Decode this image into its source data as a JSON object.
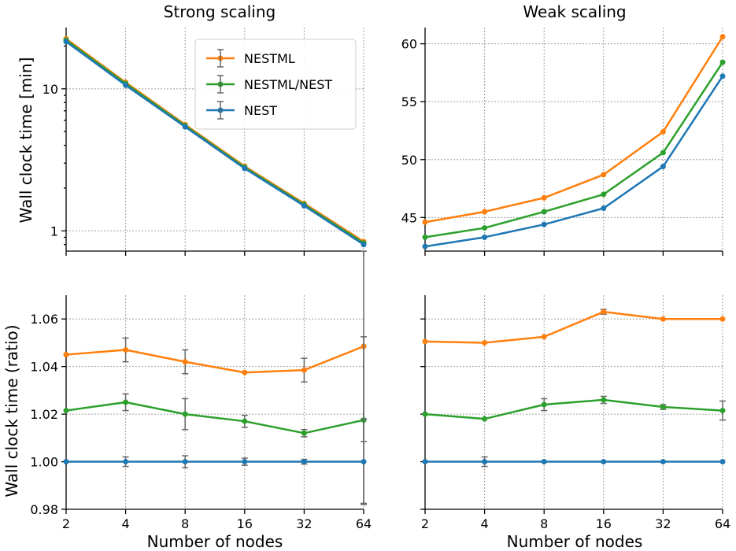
{
  "chart_data": [
    {
      "id": "p1",
      "type": "line",
      "title": "Strong scaling",
      "xlabel": "",
      "ylabel": "Wall clock time [min]",
      "yscale": "log",
      "ylim": [
        0.72,
        27
      ],
      "x": [
        2,
        4,
        8,
        16,
        32,
        64
      ],
      "xticks": [],
      "yticks": [
        {
          "value": 1,
          "label": "1"
        },
        {
          "value": 10,
          "label": "10"
        }
      ],
      "legend": true,
      "series": [
        {
          "name": "NESTML",
          "color": "#ff7f0e",
          "values": [
            22.5,
            11.1,
            5.6,
            2.85,
            1.56,
            0.84
          ],
          "errors": [
            0,
            0,
            0,
            0,
            0,
            0
          ]
        },
        {
          "name": "NESTML/NEST",
          "color": "#2ca02c",
          "values": [
            22.0,
            10.9,
            5.5,
            2.8,
            1.53,
            0.82
          ],
          "errors": [
            0,
            0,
            0,
            0,
            0,
            0
          ]
        },
        {
          "name": "NEST",
          "color": "#1f77b4",
          "values": [
            21.5,
            10.6,
            5.4,
            2.75,
            1.5,
            0.8
          ],
          "errors": [
            0,
            0,
            0,
            0,
            0,
            0
          ]
        }
      ]
    },
    {
      "id": "p2",
      "type": "line",
      "title": "Weak scaling",
      "xlabel": "",
      "ylabel": "",
      "yscale": "linear",
      "ylim": [
        42.1,
        61.4
      ],
      "x": [
        2,
        4,
        8,
        16,
        32,
        64
      ],
      "xticks": [],
      "yticks": [
        {
          "value": 45,
          "label": "45"
        },
        {
          "value": 50,
          "label": "50"
        },
        {
          "value": 55,
          "label": "55"
        },
        {
          "value": 60,
          "label": "60"
        }
      ],
      "legend": false,
      "series": [
        {
          "name": "NESTML",
          "color": "#ff7f0e",
          "values": [
            44.6,
            45.5,
            46.7,
            48.7,
            52.4,
            60.6
          ],
          "errors": [
            0,
            0,
            0,
            0,
            0,
            0
          ]
        },
        {
          "name": "NESTML/NEST",
          "color": "#2ca02c",
          "values": [
            43.3,
            44.1,
            45.5,
            47.0,
            50.6,
            58.4
          ],
          "errors": [
            0,
            0,
            0,
            0,
            0,
            0
          ]
        },
        {
          "name": "NEST",
          "color": "#1f77b4",
          "values": [
            42.5,
            43.3,
            44.4,
            45.8,
            49.4,
            57.2
          ],
          "errors": [
            0,
            0,
            0,
            0,
            0,
            0
          ]
        }
      ]
    },
    {
      "id": "p3",
      "type": "line",
      "title": "",
      "xlabel": "Number of nodes",
      "ylabel": "Wall clock time (ratio)",
      "yscale": "linear",
      "ylim": [
        0.98,
        1.07
      ],
      "x": [
        2,
        4,
        8,
        16,
        32,
        64
      ],
      "xticks": [
        "2",
        "4",
        "8",
        "16",
        "32",
        "64"
      ],
      "yticks": [
        {
          "value": 0.98,
          "label": "0.98"
        },
        {
          "value": 1.0,
          "label": "1.00"
        },
        {
          "value": 1.02,
          "label": "1.02"
        },
        {
          "value": 1.04,
          "label": "1.04"
        },
        {
          "value": 1.06,
          "label": "1.06"
        }
      ],
      "legend": false,
      "series": [
        {
          "name": "NESTML",
          "color": "#ff7f0e",
          "values": [
            1.045,
            1.047,
            1.042,
            1.0375,
            1.0385,
            1.0485
          ],
          "errors": [
            0,
            0.005,
            0.005,
            0,
            0.005,
            0.04
          ]
        },
        {
          "name": "NESTML/NEST",
          "color": "#2ca02c",
          "values": [
            1.0215,
            1.025,
            1.02,
            1.017,
            1.012,
            1.0175
          ],
          "errors": [
            0,
            0.0035,
            0.0065,
            0.0025,
            0.0015,
            0.035
          ]
        },
        {
          "name": "NEST",
          "color": "#1f77b4",
          "values": [
            1.0,
            1.0,
            1.0,
            1.0,
            1.0,
            1.0
          ],
          "errors": [
            0,
            0.002,
            0.0025,
            0.0015,
            0.001,
            0.018
          ]
        }
      ]
    },
    {
      "id": "p4",
      "type": "line",
      "title": "",
      "xlabel": "Number of nodes",
      "ylabel": "",
      "yscale": "linear",
      "ylim": [
        0.98,
        1.07
      ],
      "x": [
        2,
        4,
        8,
        16,
        32,
        64
      ],
      "xticks": [
        "2",
        "4",
        "8",
        "16",
        "32",
        "64"
      ],
      "yticks": [],
      "legend": false,
      "series": [
        {
          "name": "NESTML",
          "color": "#ff7f0e",
          "values": [
            1.0505,
            1.05,
            1.0525,
            1.063,
            1.06,
            1.06
          ],
          "errors": [
            0,
            0,
            0,
            0.001,
            0,
            0
          ]
        },
        {
          "name": "NESTML/NEST",
          "color": "#2ca02c",
          "values": [
            1.02,
            1.018,
            1.024,
            1.026,
            1.023,
            1.0215
          ],
          "errors": [
            0,
            0,
            0.0025,
            0.0015,
            0.001,
            0.004
          ]
        },
        {
          "name": "NEST",
          "color": "#1f77b4",
          "values": [
            1.0,
            1.0,
            1.0,
            1.0,
            1.0,
            1.0
          ],
          "errors": [
            0,
            0.002,
            0,
            0,
            0,
            0
          ]
        }
      ]
    }
  ]
}
